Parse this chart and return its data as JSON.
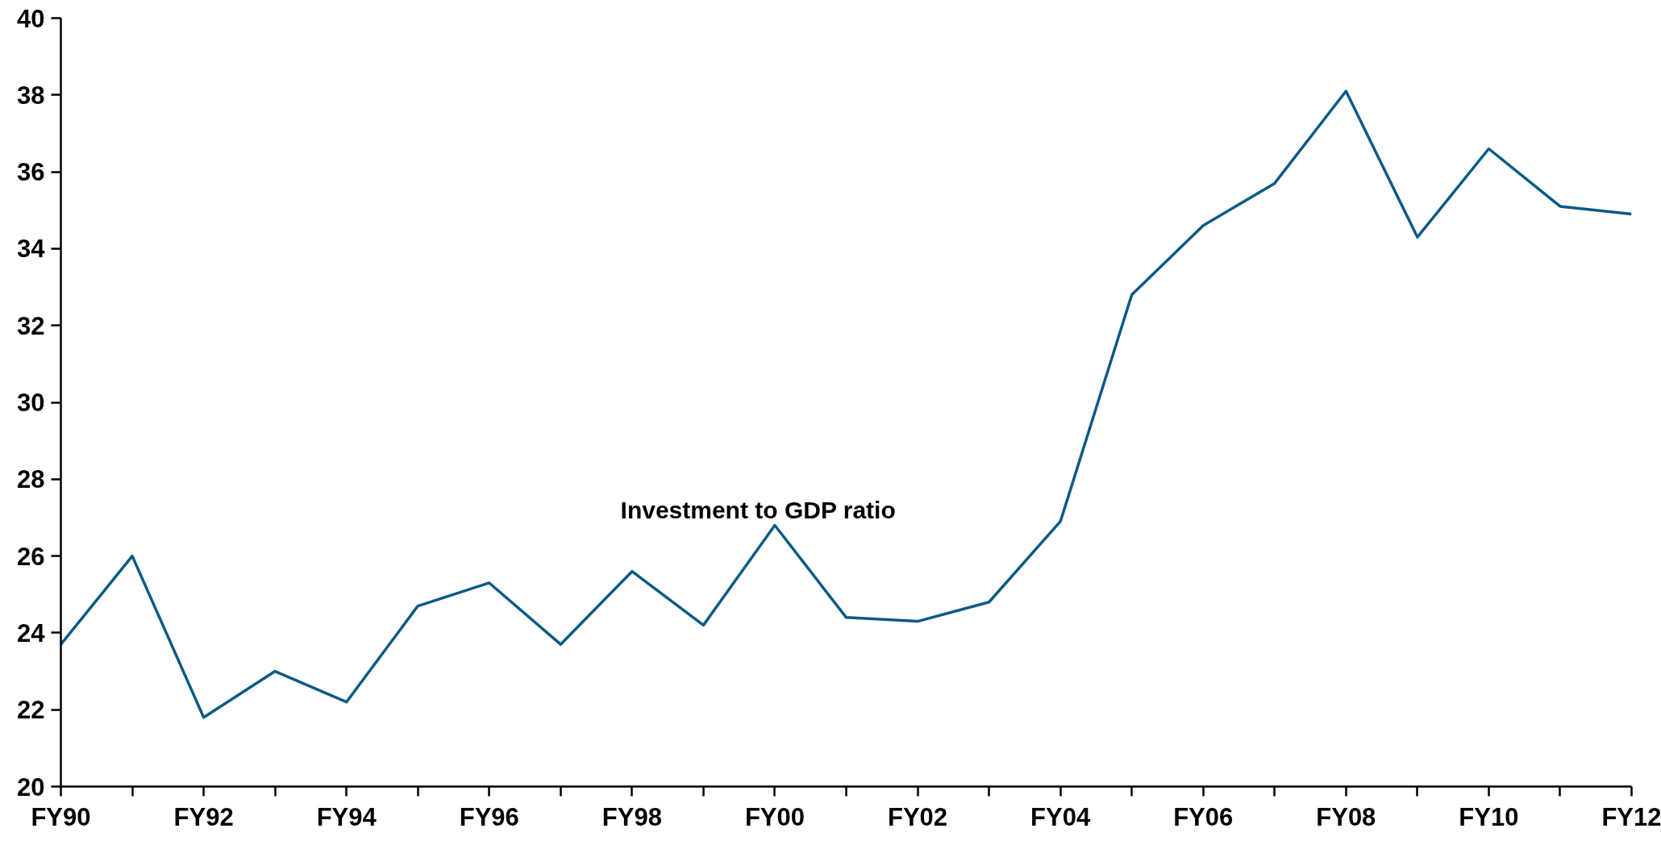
{
  "chart_data": {
    "type": "line",
    "categories": [
      "FY90",
      null,
      "FY92",
      null,
      "FY94",
      null,
      "FY96",
      null,
      "FY98",
      null,
      "FY00",
      null,
      "FY02",
      null,
      "FY04",
      null,
      "FY06",
      null,
      "FY08",
      null,
      "FY10",
      null,
      "FY12"
    ],
    "series": [
      {
        "name": "Investment to GDP ratio",
        "color": "#0b5a85",
        "values": [
          23.7,
          26.0,
          21.8,
          23.0,
          22.2,
          24.7,
          25.3,
          23.7,
          25.6,
          24.2,
          26.8,
          24.4,
          24.3,
          24.8,
          26.9,
          32.8,
          34.6,
          35.7,
          38.1,
          34.3,
          36.6,
          35.1,
          34.9
        ]
      }
    ],
    "ylim": [
      20,
      40
    ],
    "yticks": [
      20,
      22,
      24,
      26,
      28,
      30,
      32,
      34,
      36,
      38,
      40
    ]
  }
}
